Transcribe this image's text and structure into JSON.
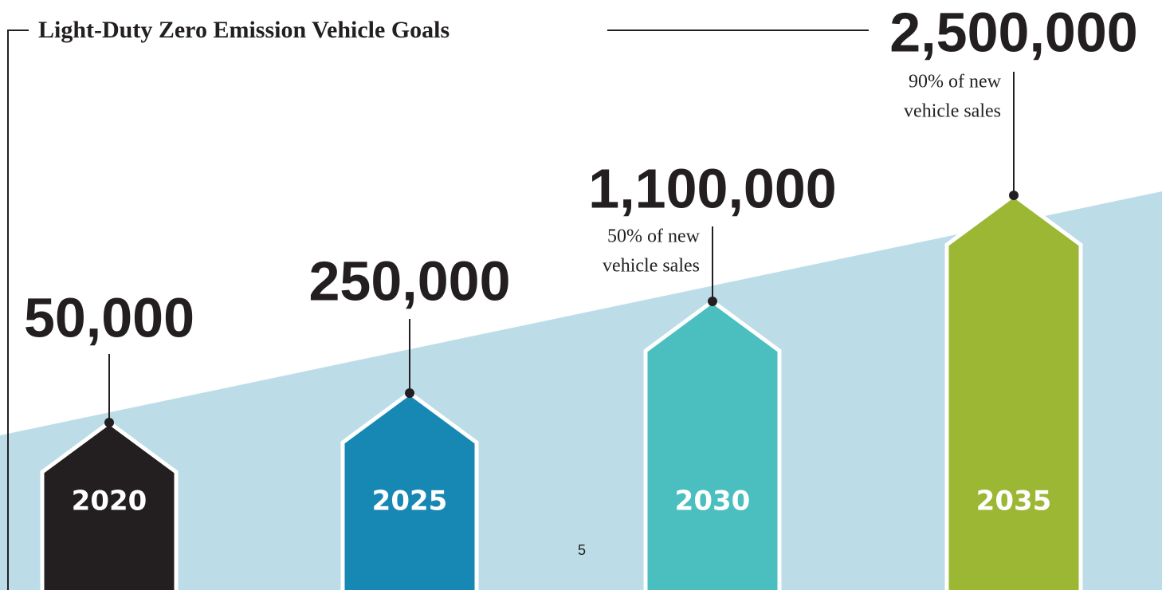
{
  "title": "Light-Duty Zero Emission Vehicle Goals",
  "page_number": "5",
  "goals": [
    {
      "year": "2020",
      "value": "50,000",
      "color": "#231f20"
    },
    {
      "year": "2025",
      "value": "250,000",
      "color": "#1787b3"
    },
    {
      "year": "2030",
      "value": "1,100,000",
      "color": "#4bbfbf",
      "note_lines": [
        "50% of new",
        "vehicle sales"
      ]
    },
    {
      "year": "2035",
      "value": "2,500,000",
      "color": "#9bb733",
      "note_lines": [
        "90% of new",
        "vehicle sales"
      ]
    }
  ]
}
